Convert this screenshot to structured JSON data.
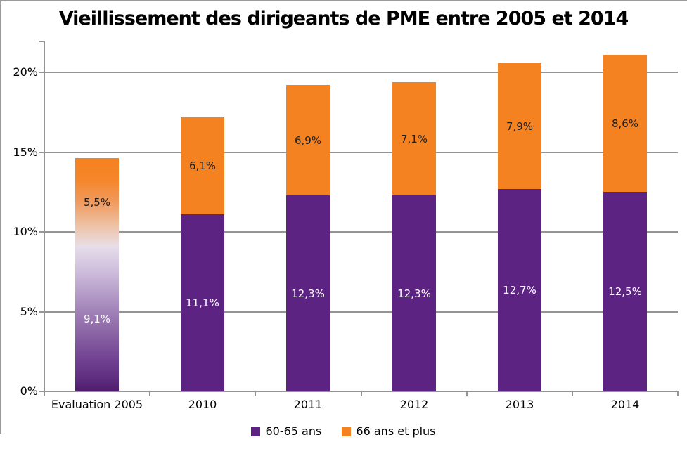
{
  "title": "Vieillissement des dirigeants de PME entre 2005 et 2014",
  "chart_data": {
    "type": "bar",
    "stacked": true,
    "title": "Vieillissement des dirigeants de PME entre 2005 et 2014",
    "categories": [
      "Evaluation 2005",
      "2010",
      "2011",
      "2012",
      "2013",
      "2014"
    ],
    "series": [
      {
        "name": "60-65 ans",
        "color": "#5c2383",
        "label_color": "#ffffff",
        "values": [
          9.1,
          11.1,
          12.3,
          12.3,
          12.7,
          12.5
        ],
        "labels": [
          "9,1%",
          "11,1%",
          "12,3%",
          "12,3%",
          "12,7%",
          "12,5%"
        ]
      },
      {
        "name": "66 ans et plus",
        "color": "#f58220",
        "label_color": "#1f1f1f",
        "values": [
          5.5,
          6.1,
          6.9,
          7.1,
          7.9,
          8.6
        ],
        "labels": [
          "5,5%",
          "6,1%",
          "6,9%",
          "7,1%",
          "7,9%",
          "8,6%"
        ]
      }
    ],
    "yticks": [
      {
        "value": 0,
        "label": "0%"
      },
      {
        "value": 5,
        "label": "5%"
      },
      {
        "value": 10,
        "label": "10%"
      },
      {
        "value": 15,
        "label": "15%"
      },
      {
        "value": 20,
        "label": "20%"
      }
    ],
    "ylim": [
      0,
      22
    ],
    "xlabel": "",
    "ylabel": "",
    "grid": true,
    "legend_position": "bottom",
    "gradient_category_index": 0
  },
  "legend": {
    "items": [
      {
        "label": "60-65 ans",
        "color": "#5c2383"
      },
      {
        "label": "66 ans et plus",
        "color": "#f58220"
      }
    ]
  },
  "colors": {
    "purple": "#5c2383",
    "orange": "#f58220",
    "grid": "#949494",
    "axis": "#949494",
    "border": "#9b9b9b",
    "background": "#ffffff",
    "title_text": "#000000"
  }
}
